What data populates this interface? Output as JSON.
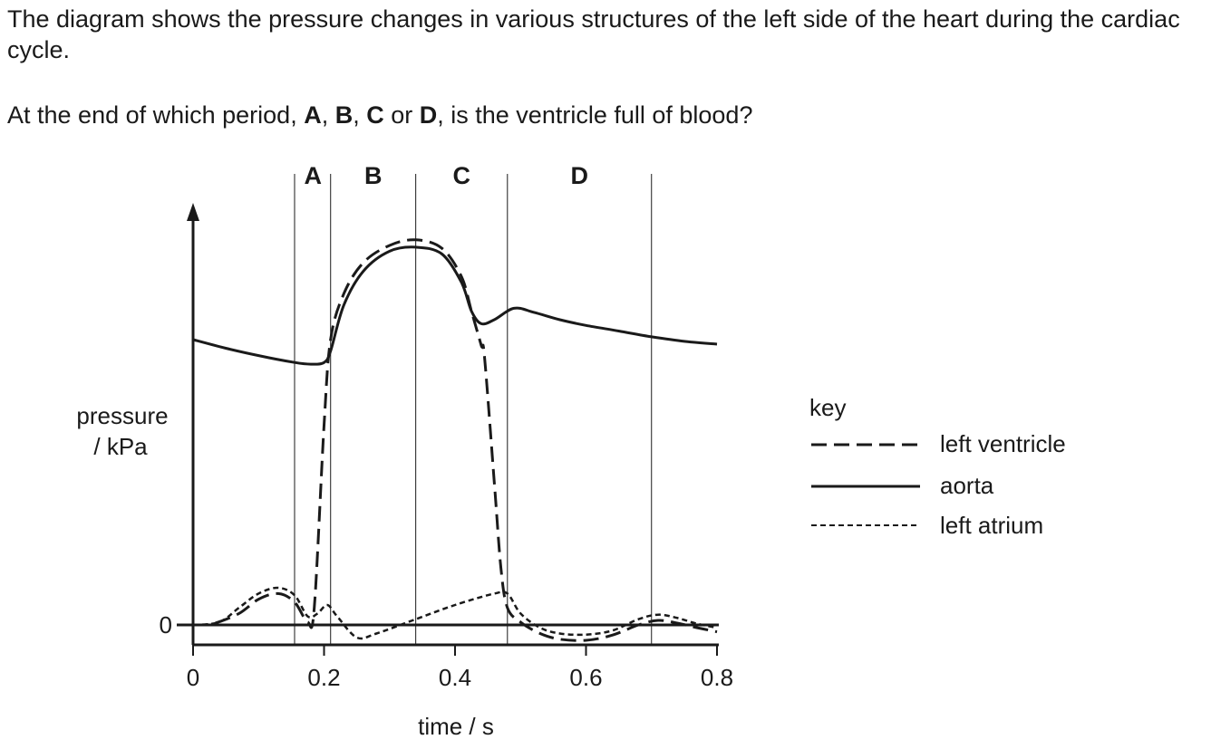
{
  "question": {
    "intro": "The diagram shows the pressure changes in various structures of the left side of the heart during the cardiac cycle.",
    "prompt_before": "At the end of which period, ",
    "option_a": "A",
    "sep1": ", ",
    "option_b": "B",
    "sep2": ", ",
    "option_c": "C",
    "sep3": " or ",
    "option_d": "D",
    "prompt_after": ", is the ventricle full of blood?"
  },
  "chart_data": {
    "type": "line",
    "xlabel": "time / s",
    "ylabel_line1": "pressure",
    "ylabel_line2": "/ kPa",
    "xlim": [
      0,
      0.8
    ],
    "ylim": [
      -0.35,
      7.2
    ],
    "x_ticks": [
      {
        "value": 0,
        "label": "0"
      },
      {
        "value": 0.2,
        "label": "0.2"
      },
      {
        "value": 0.4,
        "label": "0.4"
      },
      {
        "value": 0.6,
        "label": "0.6"
      },
      {
        "value": 0.8,
        "label": "0.8"
      }
    ],
    "y_ticks": [
      {
        "value": 0,
        "label": "0"
      }
    ],
    "period_boundaries": [
      0.155,
      0.21,
      0.34,
      0.48,
      0.7
    ],
    "periods": [
      {
        "label": "A",
        "x_center": 0.183
      },
      {
        "label": "B",
        "x_center": 0.275
      },
      {
        "label": "C",
        "x_center": 0.41
      },
      {
        "label": "D",
        "x_center": 0.59
      }
    ],
    "legend": {
      "title": "key",
      "position": "right",
      "entries": [
        {
          "name": "left ventricle",
          "style": "dashed"
        },
        {
          "name": "aorta",
          "style": "solid"
        },
        {
          "name": "left atrium",
          "style": "dotted"
        }
      ]
    },
    "series": [
      {
        "name": "left ventricle",
        "style": "dashed",
        "points": [
          [
            0,
            0
          ],
          [
            0.03,
            0.02
          ],
          [
            0.07,
            0.2
          ],
          [
            0.1,
            0.45
          ],
          [
            0.13,
            0.55
          ],
          [
            0.155,
            0.4
          ],
          [
            0.175,
            0.05
          ],
          [
            0.185,
            0.3
          ],
          [
            0.2,
            3.5
          ],
          [
            0.21,
            5.0
          ],
          [
            0.23,
            5.8
          ],
          [
            0.26,
            6.35
          ],
          [
            0.3,
            6.65
          ],
          [
            0.34,
            6.75
          ],
          [
            0.38,
            6.6
          ],
          [
            0.41,
            6.1
          ],
          [
            0.425,
            5.5
          ],
          [
            0.44,
            4.9
          ],
          [
            0.445,
            4.7
          ],
          [
            0.46,
            2.5
          ],
          [
            0.47,
            1.0
          ],
          [
            0.48,
            0.3
          ],
          [
            0.5,
            0.05
          ],
          [
            0.53,
            -0.15
          ],
          [
            0.56,
            -0.25
          ],
          [
            0.6,
            -0.27
          ],
          [
            0.64,
            -0.18
          ],
          [
            0.68,
            0.0
          ],
          [
            0.71,
            0.08
          ],
          [
            0.74,
            0.03
          ],
          [
            0.77,
            -0.05
          ],
          [
            0.8,
            -0.12
          ]
        ]
      },
      {
        "name": "aorta",
        "style": "solid",
        "points": [
          [
            0,
            5.0
          ],
          [
            0.05,
            4.85
          ],
          [
            0.1,
            4.72
          ],
          [
            0.155,
            4.6
          ],
          [
            0.18,
            4.57
          ],
          [
            0.2,
            4.6
          ],
          [
            0.21,
            4.8
          ],
          [
            0.23,
            5.6
          ],
          [
            0.26,
            6.2
          ],
          [
            0.3,
            6.55
          ],
          [
            0.34,
            6.62
          ],
          [
            0.38,
            6.5
          ],
          [
            0.41,
            6.0
          ],
          [
            0.425,
            5.5
          ],
          [
            0.44,
            5.28
          ],
          [
            0.46,
            5.35
          ],
          [
            0.49,
            5.55
          ],
          [
            0.52,
            5.48
          ],
          [
            0.56,
            5.35
          ],
          [
            0.6,
            5.25
          ],
          [
            0.65,
            5.15
          ],
          [
            0.7,
            5.05
          ],
          [
            0.75,
            4.97
          ],
          [
            0.8,
            4.92
          ]
        ]
      },
      {
        "name": "left atrium",
        "style": "dotted",
        "points": [
          [
            0,
            0
          ],
          [
            0.04,
            0.05
          ],
          [
            0.07,
            0.3
          ],
          [
            0.1,
            0.55
          ],
          [
            0.13,
            0.65
          ],
          [
            0.155,
            0.52
          ],
          [
            0.175,
            0.15
          ],
          [
            0.19,
            0.2
          ],
          [
            0.205,
            0.35
          ],
          [
            0.22,
            0.15
          ],
          [
            0.25,
            -0.22
          ],
          [
            0.28,
            -0.15
          ],
          [
            0.34,
            0.1
          ],
          [
            0.4,
            0.35
          ],
          [
            0.46,
            0.55
          ],
          [
            0.48,
            0.55
          ],
          [
            0.5,
            0.2
          ],
          [
            0.53,
            -0.05
          ],
          [
            0.56,
            -0.15
          ],
          [
            0.6,
            -0.17
          ],
          [
            0.64,
            -0.1
          ],
          [
            0.68,
            0.1
          ],
          [
            0.71,
            0.18
          ],
          [
            0.74,
            0.12
          ],
          [
            0.77,
            0.02
          ],
          [
            0.8,
            -0.05
          ]
        ]
      }
    ]
  }
}
